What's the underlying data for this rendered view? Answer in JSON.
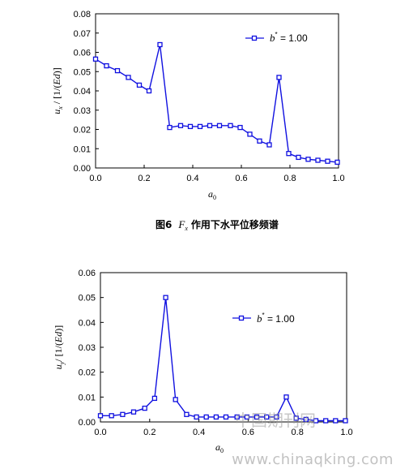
{
  "chart_data": [
    {
      "type": "line",
      "ylabel_html": "u_x / [1/(Ed)]",
      "ylabel_main": "u",
      "ylabel_sub": "x",
      "ylabel_rest": " / [1/(",
      "ylabel_ed": "Ed",
      "ylabel_end": ")]",
      "xlabel_main": "a",
      "xlabel_sub": "0",
      "xlim": [
        0,
        1.0
      ],
      "ylim": [
        0,
        0.08
      ],
      "xticks": [
        "0.0",
        "0.2",
        "0.4",
        "0.6",
        "0.8",
        "1.0"
      ],
      "xtick_values": [
        0,
        0.2,
        0.4,
        0.6,
        0.8,
        1.0
      ],
      "yticks": [
        "0.00",
        "0.01",
        "0.02",
        "0.03",
        "0.04",
        "0.05",
        "0.06",
        "0.07",
        "0.08"
      ],
      "ytick_values": [
        0,
        0.01,
        0.02,
        0.03,
        0.04,
        0.05,
        0.06,
        0.07,
        0.08
      ],
      "legend_label_var": "b",
      "legend_label_sup": "*",
      "legend_label_val": " = 1.00",
      "legend_position": "top-right",
      "color": "#1010e0",
      "series": [
        {
          "x": [
            0.0,
            0.045,
            0.09,
            0.135,
            0.18,
            0.22,
            0.265,
            0.305,
            0.35,
            0.39,
            0.43,
            0.47,
            0.51,
            0.555,
            0.595,
            0.635,
            0.675,
            0.715,
            0.755,
            0.795,
            0.835,
            0.875,
            0.915,
            0.955,
            0.995
          ],
          "y": [
            0.0565,
            0.053,
            0.0505,
            0.047,
            0.043,
            0.04,
            0.064,
            0.021,
            0.022,
            0.0215,
            0.0215,
            0.022,
            0.022,
            0.022,
            0.021,
            0.0175,
            0.014,
            0.012,
            0.047,
            0.0075,
            0.0055,
            0.0045,
            0.004,
            0.0035,
            0.003
          ]
        }
      ]
    },
    {
      "type": "line",
      "ylabel_main": "u",
      "ylabel_sub": "y",
      "ylabel_rest": "/ [1/(",
      "ylabel_ed": "Ed",
      "ylabel_end": ")]",
      "xlabel_main": "a",
      "xlabel_sub": "0",
      "xlim": [
        0,
        1.0
      ],
      "ylim": [
        0,
        0.06
      ],
      "xticks": [
        "0.0",
        "0.2",
        "0.4",
        "0.6",
        "0.8",
        "1.0"
      ],
      "xtick_values": [
        0,
        0.2,
        0.4,
        0.6,
        0.8,
        1.0
      ],
      "yticks": [
        "0.00",
        "0.01",
        "0.02",
        "0.03",
        "0.04",
        "0.05",
        "0.06"
      ],
      "ytick_values": [
        0,
        0.01,
        0.02,
        0.03,
        0.04,
        0.05,
        0.06
      ],
      "legend_label_var": "b",
      "legend_label_sup": "*",
      "legend_label_val": " = 1.00",
      "legend_position": "top-right",
      "color": "#1010e0",
      "series": [
        {
          "x": [
            0.0,
            0.045,
            0.09,
            0.135,
            0.18,
            0.22,
            0.265,
            0.305,
            0.35,
            0.39,
            0.43,
            0.47,
            0.51,
            0.555,
            0.595,
            0.635,
            0.675,
            0.715,
            0.755,
            0.795,
            0.835,
            0.875,
            0.915,
            0.955,
            0.995
          ],
          "y": [
            0.0025,
            0.0025,
            0.003,
            0.004,
            0.0055,
            0.0095,
            0.05,
            0.009,
            0.003,
            0.002,
            0.002,
            0.002,
            0.002,
            0.002,
            0.002,
            0.002,
            0.002,
            0.002,
            0.01,
            0.0015,
            0.001,
            0.0005,
            0.0005,
            0.0005,
            0.0005
          ]
        }
      ]
    }
  ],
  "caption": {
    "fig_no": "图6",
    "fx_main": "F",
    "fx_sub": "x",
    "text": "作用下水平位移频谱"
  },
  "watermark": {
    "cn": "中国期刊网",
    "url": "www.chinaqking.com"
  }
}
